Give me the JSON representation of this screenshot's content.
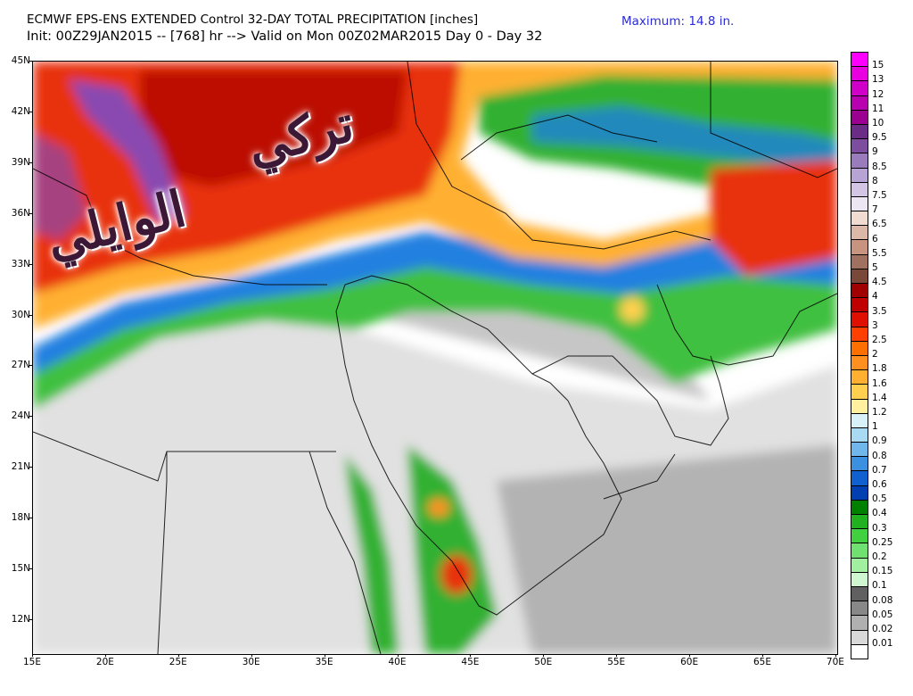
{
  "header": {
    "title_line1": "ECMWF EPS-ENS EXTENDED Control 32-DAY TOTAL PRECIPITATION [inches]",
    "title_line2": "Init: 00Z29JAN2015 -- [768] hr --> Valid on Mon 00Z02MAR2015  Day 0 - Day 32",
    "maximum_label": "Maximum:  14.8 in."
  },
  "map": {
    "lat_labels": [
      "45N",
      "42N",
      "39N",
      "36N",
      "33N",
      "30N",
      "27N",
      "24N",
      "21N",
      "18N",
      "15N",
      "12N"
    ],
    "lon_labels": [
      "15E",
      "20E",
      "25E",
      "30E",
      "35E",
      "40E",
      "45E",
      "50E",
      "55E",
      "60E",
      "65E",
      "70E"
    ],
    "watermark_word1": "تركي",
    "watermark_word2": "الوايلي"
  },
  "colorbar": {
    "levels": [
      "15",
      "13",
      "12",
      "11",
      "10",
      "9.5",
      "9",
      "8.5",
      "8",
      "7.5",
      "7",
      "6.5",
      "6",
      "5.5",
      "5",
      "4.5",
      "4",
      "3.5",
      "3",
      "2.5",
      "2",
      "1.8",
      "1.6",
      "1.4",
      "1.2",
      "1",
      "0.9",
      "0.8",
      "0.7",
      "0.6",
      "0.5",
      "0.4",
      "0.3",
      "0.25",
      "0.2",
      "0.15",
      "0.1",
      "0.08",
      "0.05",
      "0.02",
      "0.01"
    ],
    "colors": [
      "#ff00ff",
      "#e800e0",
      "#d000c8",
      "#b800b0",
      "#9c0090",
      "#6a2c84",
      "#7d4ea0",
      "#9a7cbc",
      "#b8a4d4",
      "#d2c6e4",
      "#ece6f2",
      "#f0dcd0",
      "#dcb8a8",
      "#c89480",
      "#a07060",
      "#7a4838",
      "#a00000",
      "#c00000",
      "#e01000",
      "#ff4000",
      "#ff7000",
      "#ff9020",
      "#ffb030",
      "#ffd050",
      "#fff0a0",
      "#d8f0f8",
      "#a8daf4",
      "#70b8ec",
      "#3c90e0",
      "#1060d0",
      "#0040b0",
      "#008000",
      "#20b020",
      "#40d040",
      "#70e070",
      "#a0f0a0",
      "#d0f8d0",
      "#606060",
      "#888888",
      "#b0b0b0",
      "#d8d8d8",
      "#ffffff"
    ]
  }
}
